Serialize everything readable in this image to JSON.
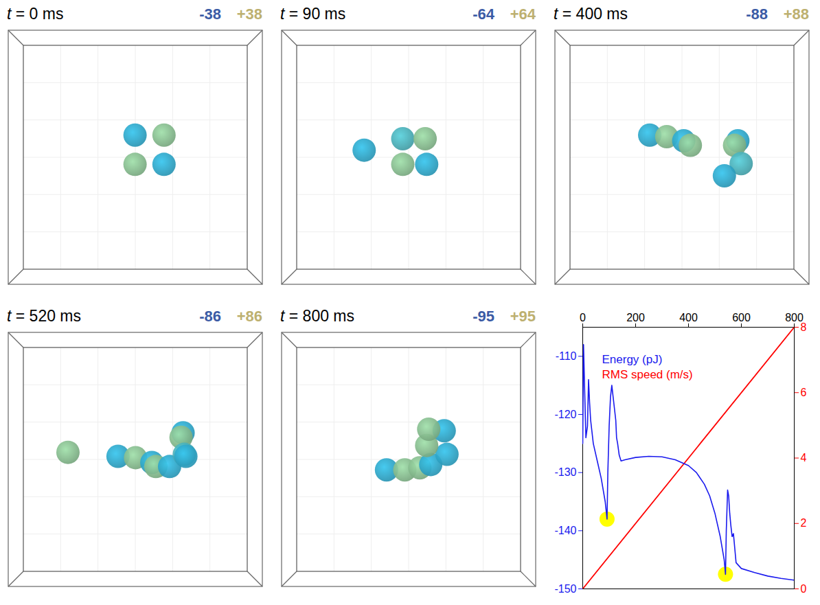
{
  "panels": [
    {
      "title": "t = 0 ms",
      "negative": {
        "value": -38,
        "label": "-38"
      },
      "positive": {
        "value": 38,
        "label": "+38"
      },
      "particles": [
        {
          "x": 0.499,
          "y": 0.413,
          "color": "#2ea6c8"
        },
        {
          "x": 0.613,
          "y": 0.413,
          "color": "#86bb8e"
        },
        {
          "x": 0.499,
          "y": 0.528,
          "color": "#86bb8e"
        },
        {
          "x": 0.613,
          "y": 0.528,
          "color": "#2ea6c8"
        }
      ]
    },
    {
      "title": "t = 90 ms",
      "negative": {
        "value": -64,
        "label": "-64"
      },
      "positive": {
        "value": 64,
        "label": "+64"
      },
      "particles": [
        {
          "x": 0.325,
          "y": 0.472,
          "color": "#2ea6c8"
        },
        {
          "x": 0.477,
          "y": 0.427,
          "color": "#4aafb8"
        },
        {
          "x": 0.565,
          "y": 0.427,
          "color": "#86bb8e"
        },
        {
          "x": 0.477,
          "y": 0.528,
          "color": "#86bb8e"
        },
        {
          "x": 0.571,
          "y": 0.528,
          "color": "#2ea6c8"
        }
      ]
    },
    {
      "title": "t = 400 ms",
      "negative": {
        "value": -88,
        "label": "-88"
      },
      "positive": {
        "value": 88,
        "label": "+88"
      },
      "particles": [
        {
          "x": 0.373,
          "y": 0.413,
          "color": "#2ea6c8"
        },
        {
          "x": 0.44,
          "y": 0.419,
          "color": "#86bb8e"
        },
        {
          "x": 0.507,
          "y": 0.435,
          "color": "#2ea6c8"
        },
        {
          "x": 0.533,
          "y": 0.453,
          "color": "#86bb8e"
        },
        {
          "x": 0.72,
          "y": 0.435,
          "color": "#2ea6c8"
        },
        {
          "x": 0.707,
          "y": 0.453,
          "color": "#86bb8e"
        },
        {
          "x": 0.733,
          "y": 0.525,
          "color": "#4aafb8"
        },
        {
          "x": 0.667,
          "y": 0.573,
          "color": "#2ea6c8"
        }
      ]
    },
    {
      "title": "t = 520 ms",
      "negative": {
        "value": -86,
        "label": "-86"
      },
      "positive": {
        "value": 86,
        "label": "+86"
      },
      "particles": [
        {
          "x": 0.235,
          "y": 0.472,
          "color": "#86bb8e"
        },
        {
          "x": 0.432,
          "y": 0.488,
          "color": "#2ea6c8"
        },
        {
          "x": 0.501,
          "y": 0.493,
          "color": "#86bb8e"
        },
        {
          "x": 0.565,
          "y": 0.512,
          "color": "#2ea6c8"
        },
        {
          "x": 0.581,
          "y": 0.528,
          "color": "#86bb8e"
        },
        {
          "x": 0.635,
          "y": 0.528,
          "color": "#2ea6c8"
        },
        {
          "x": 0.688,
          "y": 0.395,
          "color": "#2ea6c8"
        },
        {
          "x": 0.68,
          "y": 0.413,
          "color": "#86bb8e"
        },
        {
          "x": 0.693,
          "y": 0.48,
          "color": "#4aafb8"
        },
        {
          "x": 0.699,
          "y": 0.488,
          "color": "#2ea6c8"
        }
      ]
    },
    {
      "title": "t = 800 ms",
      "negative": {
        "value": -95,
        "label": "-95"
      },
      "positive": {
        "value": 95,
        "label": "+95"
      },
      "particles": [
        {
          "x": 0.413,
          "y": 0.541,
          "color": "#2ea6c8"
        },
        {
          "x": 0.485,
          "y": 0.541,
          "color": "#86bb8e"
        },
        {
          "x": 0.544,
          "y": 0.533,
          "color": "#86bb8e"
        },
        {
          "x": 0.587,
          "y": 0.52,
          "color": "#2ea6c8"
        },
        {
          "x": 0.651,
          "y": 0.48,
          "color": "#2ea6c8"
        },
        {
          "x": 0.571,
          "y": 0.445,
          "color": "#86bb8e"
        },
        {
          "x": 0.64,
          "y": 0.387,
          "color": "#2ea6c8"
        },
        {
          "x": 0.579,
          "y": 0.381,
          "color": "#86bb8e"
        }
      ]
    }
  ],
  "chart_data": {
    "type": "line",
    "legend": "top",
    "xlim": [
      0,
      800
    ],
    "xticks": [
      0,
      200,
      400,
      600,
      800
    ],
    "ylim": [
      -150,
      -105
    ],
    "yticks": [
      -150,
      -140,
      -130,
      -120,
      -110
    ],
    "y2lim": [
      0,
      8
    ],
    "y2ticks": [
      0,
      2,
      4,
      6,
      8
    ],
    "series": [
      {
        "name": "Energy (pJ)",
        "color": "#1a1aee",
        "x": [
          0,
          3,
          8,
          12,
          18,
          22,
          26,
          30,
          40,
          55,
          70,
          85,
          92,
          95,
          100,
          105,
          110,
          115,
          120,
          125,
          128,
          132,
          138,
          145,
          160,
          200,
          250,
          300,
          350,
          400,
          430,
          460,
          480,
          500,
          520,
          535,
          540,
          543,
          548,
          552,
          556,
          560,
          565,
          570,
          575,
          580,
          600,
          650,
          700,
          750,
          800
        ],
        "values": [
          -125,
          -108,
          -117,
          -124,
          -122,
          -114,
          -118,
          -121,
          -125,
          -128,
          -131,
          -135,
          -138,
          -130,
          -122,
          -117,
          -115,
          -117,
          -119,
          -121,
          -124,
          -125,
          -127,
          -128,
          -127.8,
          -127.4,
          -127.2,
          -127.3,
          -127.8,
          -128.8,
          -130,
          -132,
          -134,
          -137,
          -141,
          -145,
          -147.5,
          -140,
          -133,
          -134,
          -137,
          -139,
          -141,
          -140.5,
          -143,
          -145.5,
          -146.5,
          -147.2,
          -147.8,
          -148.2,
          -148.5
        ]
      },
      {
        "name": "RMS speed (m/s)",
        "color": "#ff0000",
        "axis": "y2",
        "x": [
          0,
          800
        ],
        "values": [
          0,
          8
        ]
      }
    ],
    "highlights": {
      "color": "#ffff00",
      "x": [
        92,
        540
      ],
      "values": [
        -138,
        -147.5
      ]
    }
  }
}
